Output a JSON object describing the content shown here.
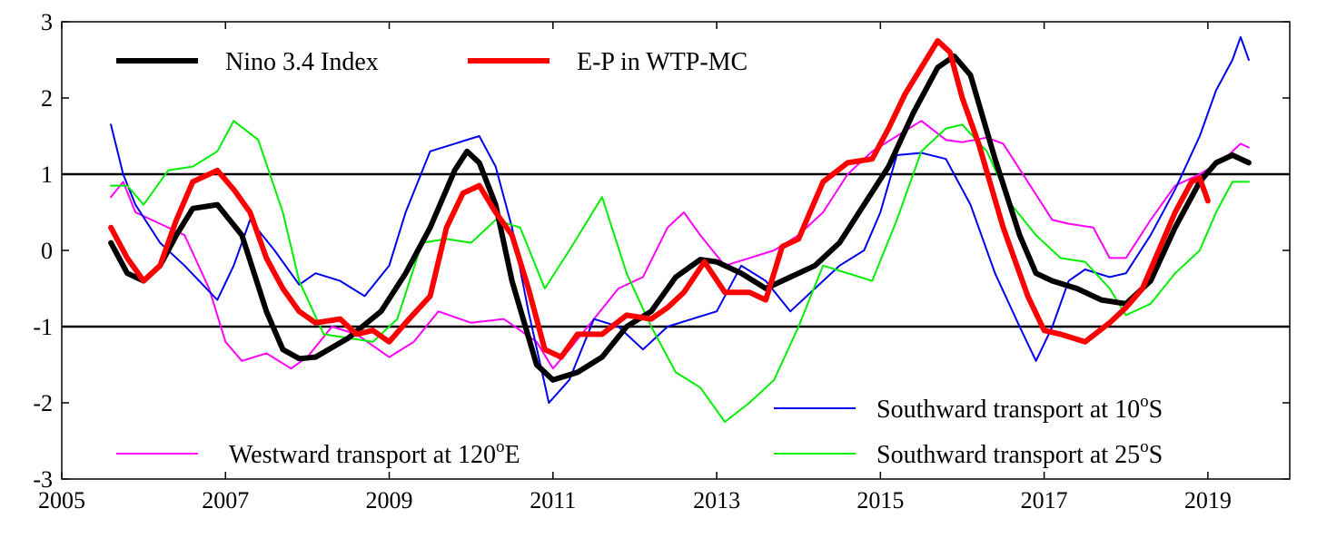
{
  "chart_data": {
    "type": "line",
    "title": "",
    "xlabel": "",
    "ylabel": "",
    "xlim": [
      2005,
      2020
    ],
    "ylim": [
      -3,
      3
    ],
    "xticks": [
      2005,
      2007,
      2009,
      2011,
      2013,
      2015,
      2017,
      2019
    ],
    "yticks": [
      -3,
      -2,
      -1,
      0,
      1,
      2,
      3
    ],
    "grid": false,
    "reference_lines": [
      1,
      -1
    ],
    "legend": [
      {
        "series": "nino34",
        "label": "Nino 3.4 Index",
        "position": "top-left"
      },
      {
        "series": "ep",
        "label": "E-P in WTP-MC",
        "position": "top-left"
      },
      {
        "series": "south10",
        "label": "Southward transport at 10",
        "sup": "o",
        "suffix": "S",
        "position": "bottom-right"
      },
      {
        "series": "west120",
        "label": "Westward transport at 120",
        "sup": "o",
        "suffix": "E",
        "position": "bottom-left"
      },
      {
        "series": "south25",
        "label": "Southward transport at 25",
        "sup": "o",
        "suffix": "S",
        "position": "bottom-right"
      }
    ],
    "series": [
      {
        "key": "west120",
        "name": "Westward transport at 120°E",
        "color": "#ff00ff",
        "width": 2,
        "x": [
          2005.6,
          2005.75,
          2005.9,
          2006.2,
          2006.5,
          2006.8,
          2007.0,
          2007.2,
          2007.5,
          2007.8,
          2008.0,
          2008.3,
          2008.6,
          2009.0,
          2009.3,
          2009.6,
          2010.0,
          2010.4,
          2010.8,
          2011.0,
          2011.2,
          2011.5,
          2011.8,
          2012.1,
          2012.4,
          2012.6,
          2012.8,
          2013.1,
          2013.4,
          2013.7,
          2014.0,
          2014.3,
          2014.6,
          2014.9,
          2015.2,
          2015.5,
          2015.8,
          2016.0,
          2016.3,
          2016.5,
          2016.8,
          2017.1,
          2017.3,
          2017.6,
          2017.8,
          2018.0,
          2018.3,
          2018.6,
          2018.9,
          2019.2,
          2019.4,
          2019.5
        ],
        "y": [
          0.7,
          0.9,
          0.5,
          0.35,
          0.2,
          -0.5,
          -1.2,
          -1.45,
          -1.35,
          -1.55,
          -1.4,
          -1.0,
          -1.1,
          -1.4,
          -1.2,
          -0.8,
          -0.95,
          -0.9,
          -1.2,
          -1.55,
          -1.3,
          -0.9,
          -0.5,
          -0.35,
          0.3,
          0.5,
          0.2,
          -0.2,
          -0.1,
          0.0,
          0.2,
          0.5,
          1.0,
          1.3,
          1.5,
          1.7,
          1.45,
          1.42,
          1.48,
          1.4,
          0.9,
          0.4,
          0.35,
          0.3,
          -0.1,
          -0.1,
          0.4,
          0.85,
          1.0,
          1.2,
          1.4,
          1.35
        ]
      },
      {
        "key": "south10",
        "name": "Southward transport at 10°S",
        "color": "#0000ee",
        "width": 2,
        "x": [
          2005.6,
          2005.75,
          2005.9,
          2006.2,
          2006.5,
          2006.9,
          2007.1,
          2007.3,
          2007.6,
          2007.9,
          2008.1,
          2008.4,
          2008.7,
          2009.0,
          2009.2,
          2009.5,
          2009.8,
          2010.1,
          2010.3,
          2010.5,
          2010.7,
          2010.95,
          2011.2,
          2011.5,
          2011.8,
          2012.1,
          2012.4,
          2012.7,
          2013.0,
          2013.3,
          2013.6,
          2013.9,
          2014.2,
          2014.5,
          2014.8,
          2015.0,
          2015.2,
          2015.5,
          2015.8,
          2016.1,
          2016.4,
          2016.7,
          2016.9,
          2017.1,
          2017.3,
          2017.5,
          2017.8,
          2018.0,
          2018.3,
          2018.6,
          2018.9,
          2019.1,
          2019.3,
          2019.4,
          2019.5
        ],
        "y": [
          1.65,
          1.0,
          0.6,
          0.1,
          -0.2,
          -0.65,
          -0.2,
          0.4,
          0.0,
          -0.45,
          -0.3,
          -0.4,
          -0.6,
          -0.2,
          0.5,
          1.3,
          1.4,
          1.5,
          1.1,
          0.3,
          -0.8,
          -2.0,
          -1.7,
          -0.9,
          -1.0,
          -1.3,
          -1.0,
          -0.9,
          -0.8,
          -0.2,
          -0.4,
          -0.8,
          -0.5,
          -0.2,
          0.0,
          0.5,
          1.25,
          1.28,
          1.2,
          0.6,
          -0.3,
          -1.0,
          -1.45,
          -1.0,
          -0.4,
          -0.25,
          -0.35,
          -0.3,
          0.2,
          0.8,
          1.5,
          2.1,
          2.5,
          2.8,
          2.5
        ]
      },
      {
        "key": "south25",
        "name": "Southward transport at 25°S",
        "color": "#00ee00",
        "width": 2,
        "x": [
          2005.6,
          2005.8,
          2006.0,
          2006.3,
          2006.6,
          2006.9,
          2007.1,
          2007.4,
          2007.7,
          2007.9,
          2008.2,
          2008.5,
          2008.8,
          2009.1,
          2009.4,
          2009.7,
          2010.0,
          2010.3,
          2010.6,
          2010.9,
          2011.2,
          2011.6,
          2011.9,
          2012.2,
          2012.5,
          2012.8,
          2013.1,
          2013.4,
          2013.7,
          2014.0,
          2014.3,
          2014.6,
          2014.9,
          2015.2,
          2015.5,
          2015.8,
          2016.0,
          2016.3,
          2016.6,
          2016.9,
          2017.2,
          2017.5,
          2017.8,
          2018.0,
          2018.3,
          2018.6,
          2018.9,
          2019.1,
          2019.3,
          2019.5
        ],
        "y": [
          0.85,
          0.85,
          0.6,
          1.05,
          1.1,
          1.3,
          1.7,
          1.45,
          0.5,
          -0.4,
          -1.1,
          -1.15,
          -1.2,
          -0.9,
          0.1,
          0.15,
          0.1,
          0.4,
          0.3,
          -0.5,
          0.0,
          0.7,
          -0.3,
          -1.0,
          -1.6,
          -1.8,
          -2.25,
          -2.0,
          -1.7,
          -1.0,
          -0.2,
          -0.3,
          -0.4,
          0.4,
          1.3,
          1.6,
          1.65,
          1.3,
          0.6,
          0.2,
          -0.1,
          -0.15,
          -0.5,
          -0.85,
          -0.7,
          -0.3,
          0.0,
          0.5,
          0.9,
          0.9
        ]
      },
      {
        "key": "nino34",
        "name": "Nino 3.4 Index",
        "color": "#000000",
        "width": 6,
        "x": [
          2005.6,
          2005.8,
          2006.0,
          2006.2,
          2006.4,
          2006.6,
          2006.9,
          2007.2,
          2007.5,
          2007.7,
          2007.9,
          2008.1,
          2008.5,
          2008.9,
          2009.2,
          2009.5,
          2009.8,
          2009.95,
          2010.1,
          2010.3,
          2010.5,
          2010.8,
          2011.0,
          2011.3,
          2011.6,
          2011.9,
          2012.2,
          2012.5,
          2012.8,
          2013.0,
          2013.3,
          2013.6,
          2013.9,
          2014.2,
          2014.5,
          2014.8,
          2015.1,
          2015.4,
          2015.7,
          2015.9,
          2016.1,
          2016.4,
          2016.7,
          2016.9,
          2017.1,
          2017.4,
          2017.7,
          2018.0,
          2018.3,
          2018.6,
          2018.9,
          2019.1,
          2019.3,
          2019.5
        ],
        "y": [
          0.1,
          -0.3,
          -0.4,
          -0.2,
          0.2,
          0.55,
          0.6,
          0.2,
          -0.8,
          -1.3,
          -1.42,
          -1.4,
          -1.15,
          -0.8,
          -0.3,
          0.3,
          1.05,
          1.3,
          1.15,
          0.6,
          -0.4,
          -1.5,
          -1.7,
          -1.6,
          -1.4,
          -1.0,
          -0.8,
          -0.35,
          -0.12,
          -0.15,
          -0.3,
          -0.5,
          -0.35,
          -0.2,
          0.1,
          0.6,
          1.1,
          1.8,
          2.4,
          2.55,
          2.3,
          1.2,
          0.2,
          -0.3,
          -0.4,
          -0.5,
          -0.65,
          -0.7,
          -0.4,
          0.3,
          0.9,
          1.15,
          1.25,
          1.15
        ]
      },
      {
        "key": "ep",
        "name": "E-P in WTP-MC",
        "color": "#ff0000",
        "width": 6,
        "x": [
          2005.6,
          2005.8,
          2006.0,
          2006.2,
          2006.4,
          2006.6,
          2006.9,
          2007.1,
          2007.3,
          2007.5,
          2007.7,
          2007.9,
          2008.1,
          2008.4,
          2008.6,
          2008.8,
          2009.0,
          2009.2,
          2009.5,
          2009.7,
          2009.9,
          2010.1,
          2010.3,
          2010.5,
          2010.7,
          2010.9,
          2011.1,
          2011.3,
          2011.6,
          2011.9,
          2012.2,
          2012.4,
          2012.6,
          2012.85,
          2013.1,
          2013.4,
          2013.6,
          2013.8,
          2014.0,
          2014.3,
          2014.6,
          2014.9,
          2015.1,
          2015.3,
          2015.5,
          2015.7,
          2015.85,
          2016.0,
          2016.2,
          2016.5,
          2016.8,
          2017.0,
          2017.2,
          2017.5,
          2017.8,
          2018.0,
          2018.2,
          2018.4,
          2018.6,
          2018.8,
          2018.9,
          2019.0
        ],
        "y": [
          0.3,
          -0.1,
          -0.4,
          -0.2,
          0.4,
          0.9,
          1.05,
          0.8,
          0.5,
          -0.1,
          -0.5,
          -0.8,
          -0.95,
          -0.9,
          -1.1,
          -1.05,
          -1.2,
          -0.95,
          -0.6,
          0.3,
          0.75,
          0.85,
          0.5,
          0.2,
          -0.5,
          -1.3,
          -1.4,
          -1.1,
          -1.1,
          -0.85,
          -0.9,
          -0.75,
          -0.55,
          -0.15,
          -0.55,
          -0.55,
          -0.65,
          0.05,
          0.15,
          0.9,
          1.15,
          1.2,
          1.6,
          2.05,
          2.4,
          2.75,
          2.6,
          2.0,
          1.4,
          0.3,
          -0.6,
          -1.05,
          -1.1,
          -1.2,
          -0.95,
          -0.75,
          -0.5,
          0.0,
          0.5,
          0.9,
          0.95,
          0.65
        ]
      }
    ]
  }
}
